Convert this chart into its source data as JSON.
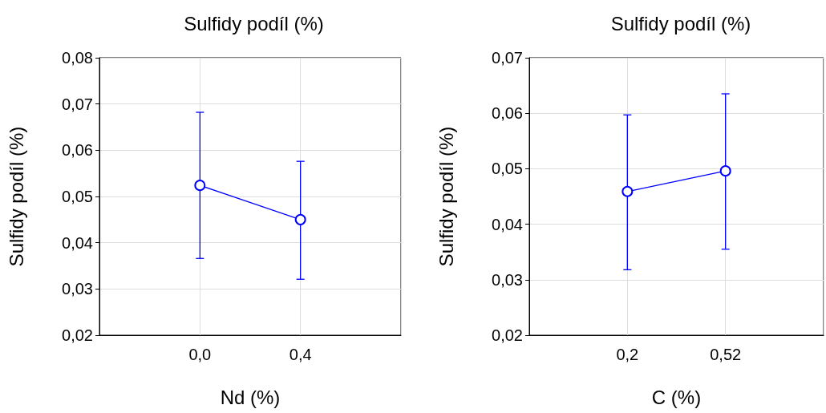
{
  "chart_data": [
    {
      "type": "line",
      "title": "Sulfidy podíl (%)",
      "xlabel": "Nd (%)",
      "ylabel": "Sulfidy podíl (%)",
      "categories": [
        null,
        "0,0",
        "0,4",
        null
      ],
      "series": [
        {
          "color": "#0000ff",
          "values": [
            null,
            0.0524,
            0.045,
            null
          ],
          "errors": [
            null,
            [
              0.0366,
              0.0682
            ],
            [
              0.0321,
              0.0576
            ],
            null
          ]
        }
      ],
      "ylim": [
        0.02,
        0.08
      ],
      "yticks": [
        {
          "value": 0.02,
          "label": "0,02"
        },
        {
          "value": 0.03,
          "label": "0,03"
        },
        {
          "value": 0.04,
          "label": "0,04"
        },
        {
          "value": 0.05,
          "label": "0,05"
        },
        {
          "value": 0.06,
          "label": "0,06"
        },
        {
          "value": 0.07,
          "label": "0,07"
        },
        {
          "value": 0.08,
          "label": "0,08"
        }
      ],
      "grid": true,
      "marker": "circle"
    },
    {
      "type": "line",
      "title": "Sulfidy podíl (%)",
      "xlabel": "C (%)",
      "ylabel": "Sulfidy podíl (%)",
      "categories": [
        null,
        "0,2",
        "0,52",
        null
      ],
      "series": [
        {
          "color": "#0000ff",
          "values": [
            null,
            0.0459,
            0.0496,
            null
          ],
          "errors": [
            null,
            [
              0.0318,
              0.0597
            ],
            [
              0.0355,
              0.0635
            ],
            null
          ]
        }
      ],
      "ylim": [
        0.02,
        0.07
      ],
      "yticks": [
        {
          "value": 0.02,
          "label": "0,02"
        },
        {
          "value": 0.03,
          "label": "0,03"
        },
        {
          "value": 0.04,
          "label": "0,04"
        },
        {
          "value": 0.05,
          "label": "0,05"
        },
        {
          "value": 0.06,
          "label": "0,06"
        },
        {
          "value": 0.07,
          "label": "0,07"
        }
      ],
      "grid": true,
      "marker": "circle"
    }
  ]
}
